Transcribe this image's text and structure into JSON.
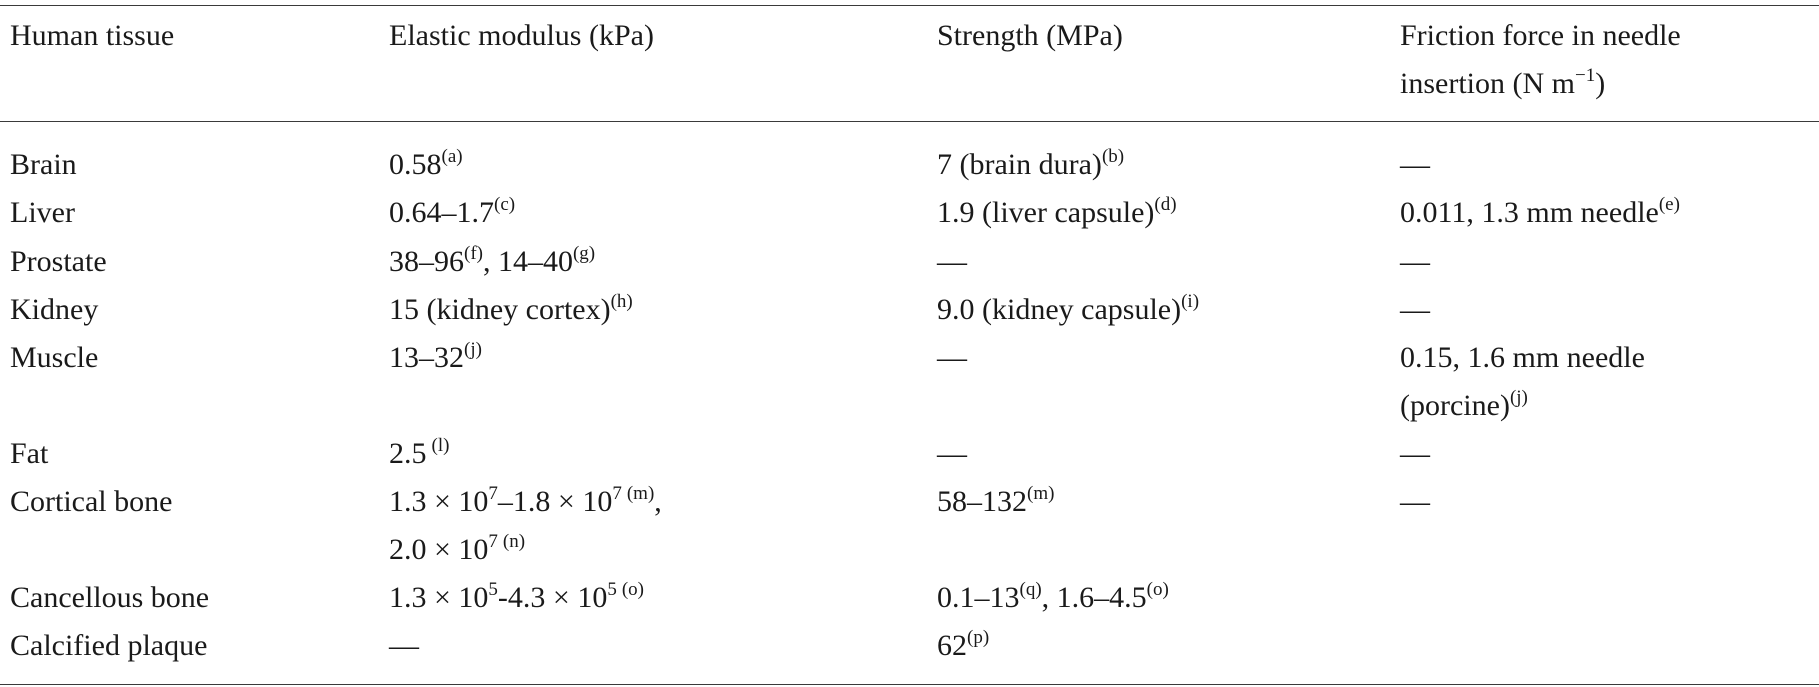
{
  "table": {
    "headers": {
      "tissue": "Human tissue",
      "modulus": "Elastic modulus (kPa)",
      "strength": "Strength (MPa)",
      "friction_line1": "Friction force in needle",
      "friction_line2_pre": "insertion (N m",
      "friction_line2_exp": "−1",
      "friction_line2_post": ")"
    },
    "rows": [
      {
        "tissue": "Brain",
        "modulus": "0.58",
        "modulus_ref": "(a)",
        "strength": "7 (brain dura)",
        "strength_ref": "(b)",
        "friction": "—"
      },
      {
        "tissue": "Liver",
        "modulus": "0.64–1.7",
        "modulus_ref": "(c)",
        "strength": "1.9 (liver capsule)",
        "strength_ref": "(d)",
        "friction": "0.011, 1.3 mm needle",
        "friction_ref": "(e)"
      },
      {
        "tissue": "Prostate",
        "modulus_a": "38–96",
        "modulus_a_ref": "(f)",
        "modulus_b": ", 14–40",
        "modulus_b_ref": "(g)",
        "strength": "—",
        "friction": "—"
      },
      {
        "tissue": "Kidney",
        "modulus": "15 (kidney cortex)",
        "modulus_ref": "(h)",
        "strength": "9.0 (kidney capsule)",
        "strength_ref": "(i)",
        "friction": "—"
      },
      {
        "tissue": "Muscle",
        "modulus": "13–32",
        "modulus_ref": "(j)",
        "strength": "—",
        "friction_line1": "0.15, 1.6 mm needle",
        "friction_line2": "(porcine)",
        "friction_ref": "(j)"
      },
      {
        "tissue": "Fat",
        "modulus": "2.5",
        "modulus_ref": "(l)",
        "strength": "—",
        "friction": "—"
      },
      {
        "tissue": "Cortical bone",
        "modulus_l1_a": "1.3 × 10",
        "modulus_l1_a_exp": "7",
        "modulus_l1_b": "–1.8 × 10",
        "modulus_l1_b_exp": "7",
        "modulus_l1_ref": "(m)",
        "modulus_l1_post": ",",
        "modulus_l2": "2.0 × 10",
        "modulus_l2_exp": "7",
        "modulus_l2_ref": "(n)",
        "strength": "58–132",
        "strength_ref": "(m)",
        "friction": "—"
      },
      {
        "tissue": "Cancellous bone",
        "modulus_a": "1.3 × 10",
        "modulus_a_exp": "5",
        "modulus_b": "-4.3 × 10",
        "modulus_b_exp": "5",
        "modulus_ref": "(o)",
        "strength_a": "0.1–13",
        "strength_a_ref": "(q)",
        "strength_b": ", 1.6–4.5",
        "strength_b_ref": "(o)"
      },
      {
        "tissue": "Calcified plaque",
        "modulus": "—",
        "strength": "62",
        "strength_ref": "(p)"
      }
    ]
  }
}
